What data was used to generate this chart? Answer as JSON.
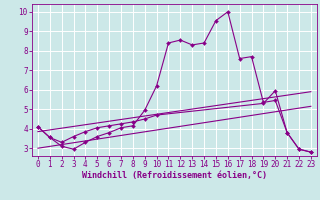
{
  "bg_color": "#cce8e8",
  "grid_color": "#ffffff",
  "line_color": "#880088",
  "xlabel": "Windchill (Refroidissement éolien,°C)",
  "xlim": [
    -0.5,
    23.5
  ],
  "ylim": [
    2.6,
    10.4
  ],
  "xticks": [
    0,
    1,
    2,
    3,
    4,
    5,
    6,
    7,
    8,
    9,
    10,
    11,
    12,
    13,
    14,
    15,
    16,
    17,
    18,
    19,
    20,
    21,
    22,
    23
  ],
  "yticks": [
    3,
    4,
    5,
    6,
    7,
    8,
    9,
    10
  ],
  "series1_x": [
    0,
    1,
    2,
    3,
    4,
    5,
    6,
    7,
    8,
    9,
    10,
    11,
    12,
    13,
    14,
    15,
    16,
    17,
    18,
    19,
    20,
    21,
    22,
    23
  ],
  "series1_y": [
    4.1,
    3.55,
    3.1,
    2.95,
    3.3,
    3.6,
    3.8,
    4.05,
    4.15,
    4.95,
    6.2,
    8.4,
    8.55,
    8.3,
    8.4,
    9.55,
    10.0,
    7.6,
    7.7,
    5.35,
    5.45,
    3.8,
    2.95,
    2.8
  ],
  "series2_x": [
    0,
    1,
    2,
    3,
    4,
    5,
    6,
    7,
    8,
    9,
    10,
    19,
    20,
    21,
    22,
    23
  ],
  "series2_y": [
    4.1,
    3.55,
    3.3,
    3.6,
    3.85,
    4.05,
    4.15,
    4.25,
    4.35,
    4.5,
    4.7,
    5.3,
    5.95,
    3.8,
    2.95,
    2.8
  ],
  "line1_x": [
    0,
    23
  ],
  "line1_y": [
    3.85,
    5.9
  ],
  "line2_x": [
    0,
    23
  ],
  "line2_y": [
    3.0,
    5.15
  ],
  "markersize": 2.0,
  "linewidth": 0.8,
  "tick_fontsize": 5.5,
  "xlabel_fontsize": 6.0
}
